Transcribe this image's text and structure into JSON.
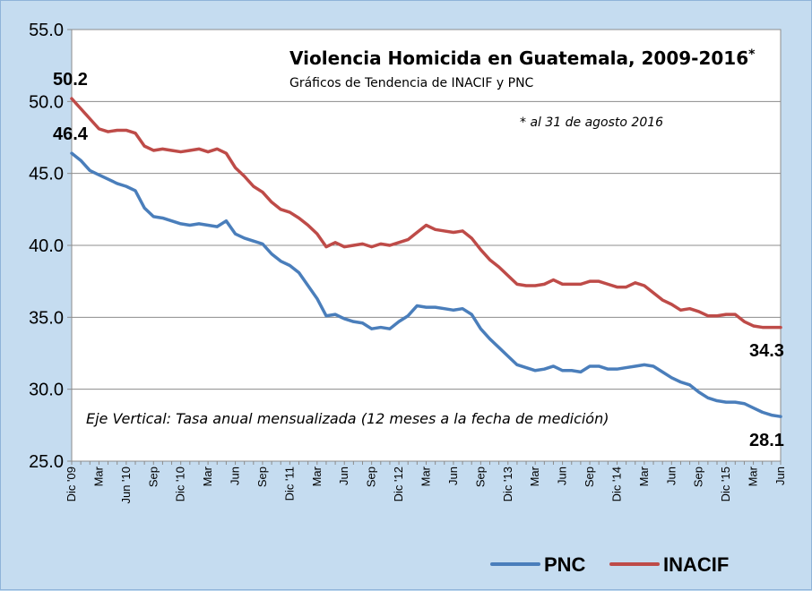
{
  "chart_data": {
    "type": "line",
    "title": "Violencia Homicida en Guatemala, 2009-2016",
    "title_mark": "*",
    "subtitle": "Gráficos de Tendencia de INACIF y PNC",
    "note": "* al 31 de agosto 2016",
    "axis_note": "Eje Vertical: Tasa anual mensualizada (12 meses a la fecha de medición)",
    "ylim": [
      25,
      55
    ],
    "yticks": [
      "25.0",
      "30.0",
      "35.0",
      "40.0",
      "45.0",
      "50.0",
      "55.0"
    ],
    "grid": true,
    "legend_position": "bottom",
    "x_labels": [
      {
        "label": "Dic '09",
        "index": 0
      },
      {
        "label": "Mar",
        "index": 3
      },
      {
        "label": "Jun '10",
        "index": 6
      },
      {
        "label": "Sep",
        "index": 9
      },
      {
        "label": "Dic '10",
        "index": 12
      },
      {
        "label": "Mar",
        "index": 15
      },
      {
        "label": "Jun",
        "index": 18
      },
      {
        "label": "Sep",
        "index": 21
      },
      {
        "label": "Dic '11",
        "index": 24
      },
      {
        "label": "Mar",
        "index": 27
      },
      {
        "label": "Jun",
        "index": 30
      },
      {
        "label": "Sep",
        "index": 33
      },
      {
        "label": "Dic '12",
        "index": 36
      },
      {
        "label": "Mar",
        "index": 39
      },
      {
        "label": "Jun",
        "index": 42
      },
      {
        "label": "Sep",
        "index": 45
      },
      {
        "label": "Dic '13",
        "index": 48
      },
      {
        "label": "Mar",
        "index": 51
      },
      {
        "label": "Jun",
        "index": 54
      },
      {
        "label": "Sep",
        "index": 57
      },
      {
        "label": "Dic '14",
        "index": 60
      },
      {
        "label": "Mar",
        "index": 63
      },
      {
        "label": "Jun",
        "index": 66
      },
      {
        "label": "Sep",
        "index": 69
      },
      {
        "label": "Dic '15",
        "index": 72
      },
      {
        "label": "Mar",
        "index": 75
      },
      {
        "label": "Jun",
        "index": 78
      }
    ],
    "series": [
      {
        "name": "PNC",
        "color": "#4a7ebb",
        "start_label": "46.4",
        "end_label": "28.1",
        "values": [
          46.4,
          45.9,
          45.2,
          44.9,
          44.6,
          44.3,
          44.1,
          43.8,
          42.6,
          42.0,
          41.9,
          41.7,
          41.5,
          41.4,
          41.5,
          41.4,
          41.3,
          41.7,
          40.8,
          40.5,
          40.3,
          40.1,
          39.4,
          38.9,
          38.6,
          38.1,
          37.2,
          36.3,
          35.1,
          35.2,
          34.9,
          34.7,
          34.6,
          34.2,
          34.3,
          34.2,
          34.7,
          35.1,
          35.8,
          35.7,
          35.7,
          35.6,
          35.5,
          35.6,
          35.2,
          34.2,
          33.5,
          32.9,
          32.3,
          31.7,
          31.5,
          31.3,
          31.4,
          31.6,
          31.3,
          31.3,
          31.2,
          31.6,
          31.6,
          31.4,
          31.4,
          31.5,
          31.6,
          31.7,
          31.6,
          31.2,
          30.8,
          30.5,
          30.3,
          29.8,
          29.4,
          29.2,
          29.1,
          29.1,
          29.0,
          28.7,
          28.4,
          28.2,
          28.1
        ]
      },
      {
        "name": "INACIF",
        "color": "#be4b48",
        "start_label": "50.2",
        "end_label": "34.3",
        "values": [
          50.2,
          49.5,
          48.8,
          48.1,
          47.9,
          48.0,
          48.0,
          47.8,
          46.9,
          46.6,
          46.7,
          46.6,
          46.5,
          46.6,
          46.7,
          46.5,
          46.7,
          46.4,
          45.4,
          44.8,
          44.1,
          43.7,
          43.0,
          42.5,
          42.3,
          41.9,
          41.4,
          40.8,
          39.9,
          40.2,
          39.9,
          40.0,
          40.1,
          39.9,
          40.1,
          40.0,
          40.2,
          40.4,
          40.9,
          41.4,
          41.1,
          41.0,
          40.9,
          41.0,
          40.5,
          39.7,
          39.0,
          38.5,
          37.9,
          37.3,
          37.2,
          37.2,
          37.3,
          37.6,
          37.3,
          37.3,
          37.3,
          37.5,
          37.5,
          37.3,
          37.1,
          37.1,
          37.4,
          37.2,
          36.7,
          36.2,
          35.9,
          35.5,
          35.6,
          35.4,
          35.1,
          35.1,
          35.2,
          35.2,
          34.7,
          34.4,
          34.3,
          34.3,
          34.3
        ]
      }
    ]
  }
}
